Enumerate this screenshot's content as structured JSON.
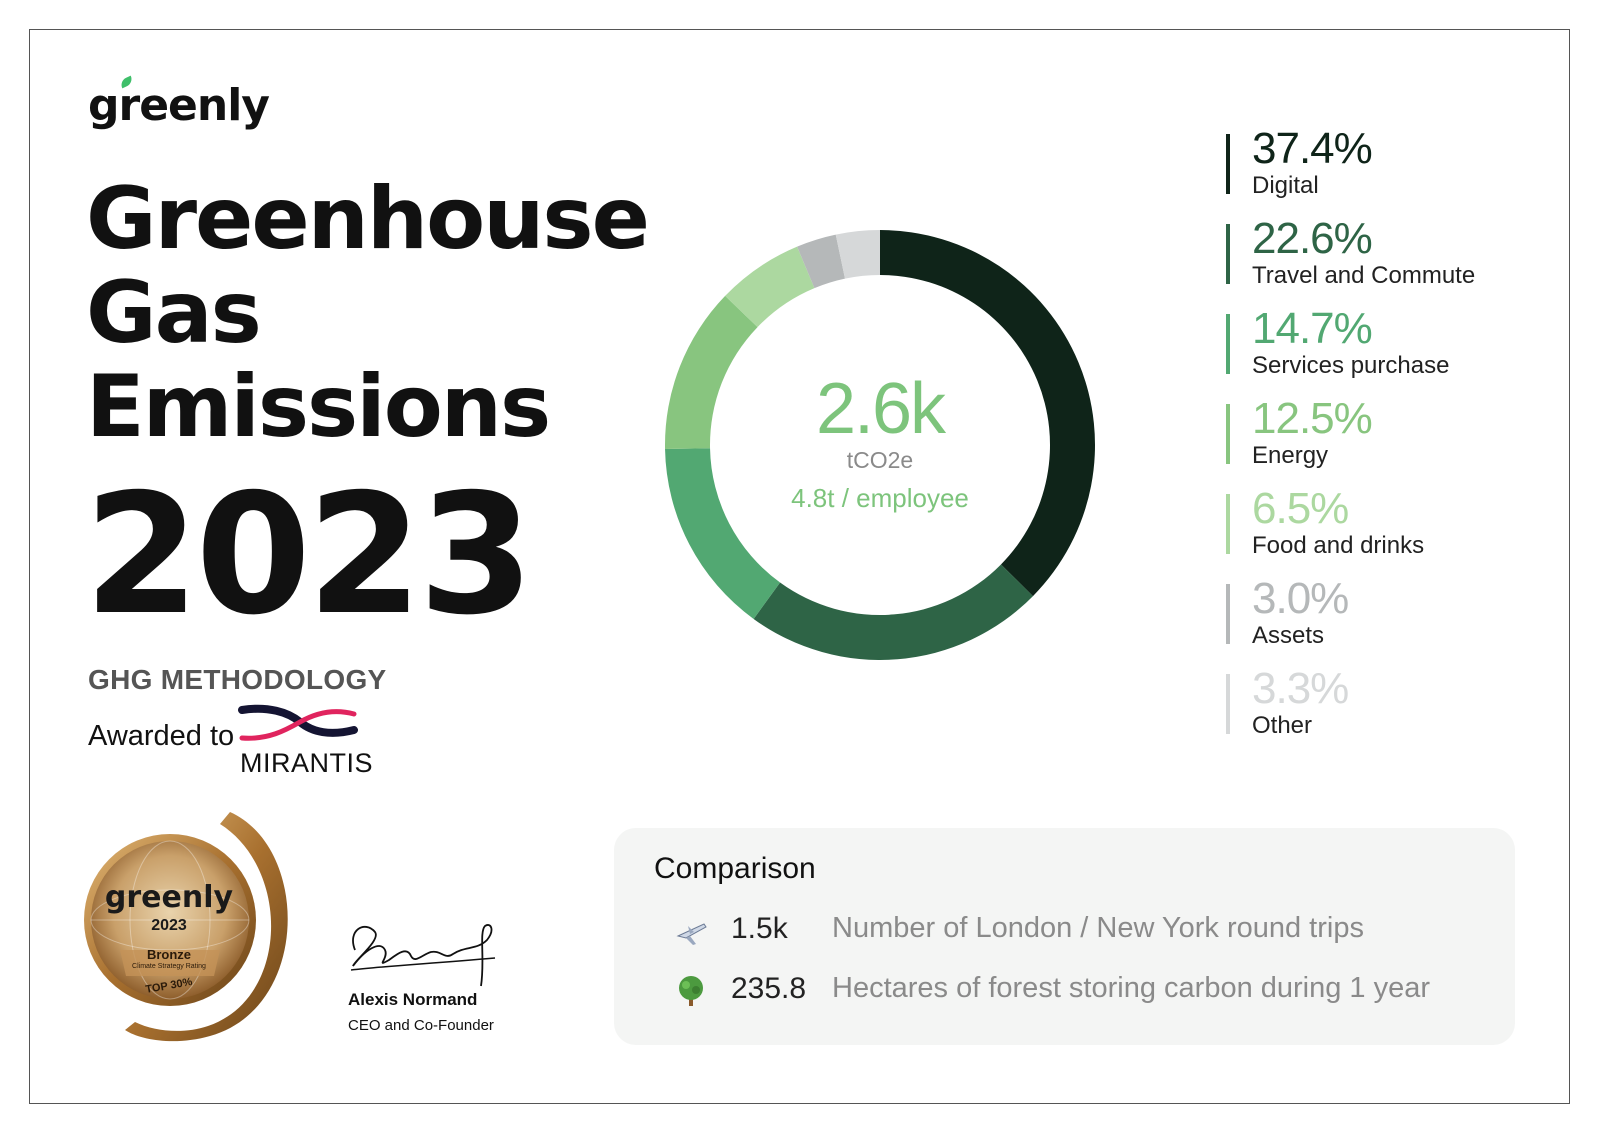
{
  "brand": {
    "logo_before": "g",
    "logo_leaf": "r",
    "logo_after": "eenly"
  },
  "title": {
    "line1": "Greenhouse",
    "line2": "Gas",
    "line3": "Emissions",
    "year": "2023"
  },
  "methodology": "GHG METHODOLOGY",
  "awarded": {
    "label": "Awarded to",
    "company": "MIRANTIS"
  },
  "medal": {
    "brand": "greenly",
    "year": "2023",
    "rank": "Bronze",
    "subtitle": "Climate Strategy Rating",
    "top": "TOP 30%"
  },
  "signature": {
    "name": "Alexis Normand",
    "role": "CEO and Co-Founder"
  },
  "summary": {
    "total": "2.6k",
    "unit": "tCO2e",
    "per_employee": "4.8t / employee"
  },
  "chart_data": {
    "type": "pie",
    "variant": "donut",
    "total": "2.6k",
    "unit": "tCO2e",
    "slices": [
      {
        "label": "Digital",
        "display": "37.4%",
        "value": 37.4,
        "color": "#0f2419"
      },
      {
        "label": "Travel and Commute",
        "display": "22.6%",
        "value": 22.6,
        "color": "#2e6446"
      },
      {
        "label": "Services purchase",
        "display": "14.7%",
        "value": 14.7,
        "color": "#52a872"
      },
      {
        "label": "Energy",
        "display": "12.5%",
        "value": 12.5,
        "color": "#88c57f"
      },
      {
        "label": "Food and drinks",
        "display": "6.5%",
        "value": 6.5,
        "color": "#acd8a0"
      },
      {
        "label": "Assets",
        "display": "3.0%",
        "value": 3.0,
        "color": "#b5b8b9"
      },
      {
        "label": "Other",
        "display": "3.3%",
        "value": 3.3,
        "color": "#d6d8d9"
      }
    ],
    "legend_position": "right"
  },
  "comparison": {
    "title": "Comparison",
    "rows": [
      {
        "icon": "airplane-icon",
        "value": "1.5k",
        "label": "Number of London / New York round trips"
      },
      {
        "icon": "tree-icon",
        "value": "235.8",
        "label": "Hectares of forest storing carbon during 1 year"
      }
    ]
  }
}
